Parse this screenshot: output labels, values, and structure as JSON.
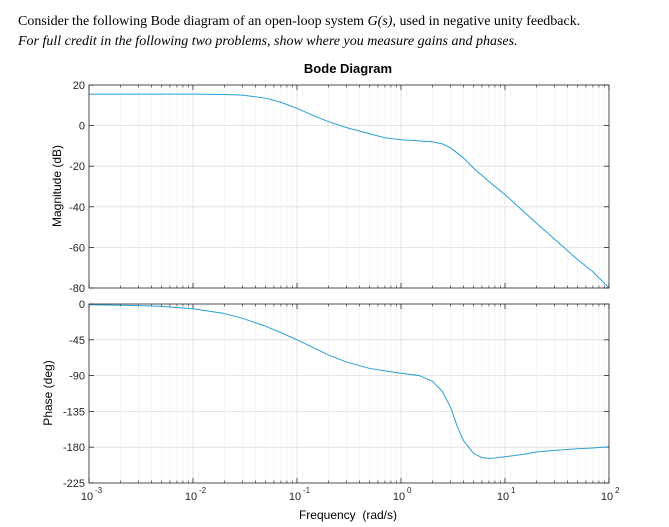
{
  "problem": {
    "intro_before": "Consider the following Bode diagram of an open-loop system ",
    "intro_symbol": "G(s)",
    "intro_after": ", used in negative unity feedback.",
    "instruction": "For full credit in the following two problems, show where you measure gains and phases."
  },
  "chart_data": {
    "type": "line",
    "title": "Bode Diagram",
    "xlabel": "Frequency  (rad/s)",
    "x_scale": "log",
    "xlim": [
      0.001,
      100
    ],
    "x_ticks": [
      0.001,
      0.01,
      0.1,
      1,
      10,
      100
    ],
    "x_tick_labels": [
      {
        "base": "10",
        "exp": "-3"
      },
      {
        "base": "10",
        "exp": "-2"
      },
      {
        "base": "10",
        "exp": "-1"
      },
      {
        "base": "10",
        "exp": "0"
      },
      {
        "base": "10",
        "exp": "1"
      },
      {
        "base": "10",
        "exp": "2"
      }
    ],
    "grid": true,
    "line_color": "#2a9fd6",
    "magnitude": {
      "ylabel": "Magnitude (dB)",
      "ylim": [
        -80,
        20
      ],
      "y_ticks": [
        20,
        0,
        -20,
        -40,
        -60,
        -80
      ],
      "y_tick_labels": [
        "20",
        "0",
        "-20",
        "-40",
        "-60",
        "-80"
      ],
      "points": [
        [
          0.001,
          15.5
        ],
        [
          0.003,
          15.5
        ],
        [
          0.01,
          15.5
        ],
        [
          0.02,
          15.3
        ],
        [
          0.03,
          15
        ],
        [
          0.05,
          13.5
        ],
        [
          0.07,
          11.5
        ],
        [
          0.1,
          8.5
        ],
        [
          0.15,
          4.5
        ],
        [
          0.2,
          2
        ],
        [
          0.3,
          -1
        ],
        [
          0.5,
          -4
        ],
        [
          0.7,
          -6
        ],
        [
          1,
          -7
        ],
        [
          1.5,
          -7.5
        ],
        [
          2,
          -8
        ],
        [
          2.5,
          -9
        ],
        [
          3,
          -11
        ],
        [
          4,
          -16
        ],
        [
          5,
          -21
        ],
        [
          6,
          -24.5
        ],
        [
          7,
          -27.5
        ],
        [
          10,
          -34
        ],
        [
          20,
          -48
        ],
        [
          30,
          -56
        ],
        [
          50,
          -66
        ],
        [
          70,
          -72
        ],
        [
          100,
          -80
        ]
      ]
    },
    "phase": {
      "ylabel": "Phase (deg)",
      "ylim": [
        -225,
        0
      ],
      "y_ticks": [
        0,
        -45,
        -90,
        -135,
        -180,
        -225
      ],
      "y_tick_labels": [
        "0",
        "-45",
        "-90",
        "-135",
        "-180",
        "-225"
      ],
      "points": [
        [
          0.001,
          -1
        ],
        [
          0.003,
          -2
        ],
        [
          0.005,
          -3
        ],
        [
          0.01,
          -6
        ],
        [
          0.02,
          -12
        ],
        [
          0.03,
          -18
        ],
        [
          0.05,
          -28
        ],
        [
          0.07,
          -36
        ],
        [
          0.1,
          -45
        ],
        [
          0.15,
          -56
        ],
        [
          0.2,
          -64
        ],
        [
          0.3,
          -73
        ],
        [
          0.5,
          -81
        ],
        [
          0.7,
          -84
        ],
        [
          1,
          -87
        ],
        [
          1.5,
          -90
        ],
        [
          2,
          -97
        ],
        [
          2.5,
          -110
        ],
        [
          3,
          -130
        ],
        [
          3.5,
          -155
        ],
        [
          4,
          -172
        ],
        [
          5,
          -188
        ],
        [
          6,
          -193
        ],
        [
          7,
          -194
        ],
        [
          8,
          -193.5
        ],
        [
          10,
          -192
        ],
        [
          15,
          -189
        ],
        [
          20,
          -186
        ],
        [
          30,
          -184
        ],
        [
          50,
          -182
        ],
        [
          70,
          -181
        ],
        [
          100,
          -179.5
        ]
      ]
    }
  }
}
